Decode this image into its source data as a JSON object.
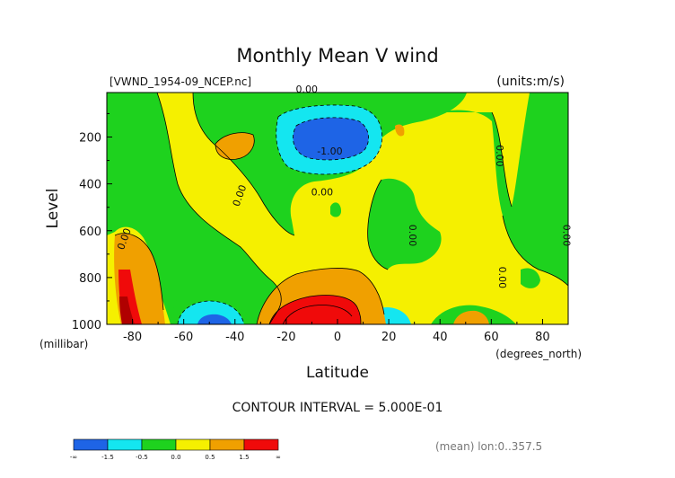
{
  "chart_data": {
    "type": "heatmap",
    "title": "Monthly Mean V wind",
    "file_label": "[VWND_1954-09_NCEP.nc]",
    "units_label": "(units:m/s)",
    "xlabel": "Latitude",
    "x_unit_label": "(degrees_north)",
    "ylabel": "Level",
    "y_unit_label": "(millibar)",
    "xlim": [
      -90,
      90
    ],
    "ylim": [
      1000,
      10
    ],
    "x_ticks": [
      "-80",
      "-60",
      "-40",
      "-20",
      "0",
      "20",
      "40",
      "60",
      "80"
    ],
    "x_tick_values": [
      -80,
      -60,
      -40,
      -20,
      0,
      20,
      40,
      60,
      80
    ],
    "y_ticks": [
      "200",
      "400",
      "600",
      "800",
      "1000"
    ],
    "y_tick_values": [
      200,
      400,
      600,
      800,
      1000
    ],
    "contour_interval_label": "CONTOUR INTERVAL = 5.000E-01",
    "mean_label": "(mean) lon:0..357.5",
    "contour_labels": [
      {
        "text": "0.00",
        "x": -12,
        "y": 10
      },
      {
        "text": "-1.00",
        "x": -3,
        "y": 275
      },
      {
        "text": "0.00",
        "x": -37,
        "y": 455
      },
      {
        "text": "0.00",
        "x": -6,
        "y": 450
      },
      {
        "text": "0.00",
        "x": 28,
        "y": 620
      },
      {
        "text": "0.00",
        "x": 62,
        "y": 280
      },
      {
        "text": "0.00",
        "x": 63,
        "y": 800
      },
      {
        "text": "0.00",
        "x": 88,
        "y": 620
      },
      {
        "text": "0.00",
        "x": -82,
        "y": 640
      }
    ],
    "colorbar": {
      "ticks": [
        "-∞",
        "-1.5",
        "-0.5",
        "0.0",
        "0.5",
        "1.5",
        "∞"
      ],
      "colors": [
        "#1e64e6",
        "#14e6f0",
        "#1ed21e",
        "#f5f000",
        "#f0a000",
        "#f00a0a"
      ]
    },
    "levels": [
      -1.5,
      -1.0,
      -0.5,
      0.0,
      0.5,
      1.0,
      1.5
    ],
    "colors": {
      "lt_m1": "#1e64e6",
      "m1_0": "#14e6f0",
      "m05_0": "#1ed21e",
      "p0_05": "#f5f000",
      "p05_1": "#f0a000",
      "gt_1": "#f00a0a"
    }
  }
}
